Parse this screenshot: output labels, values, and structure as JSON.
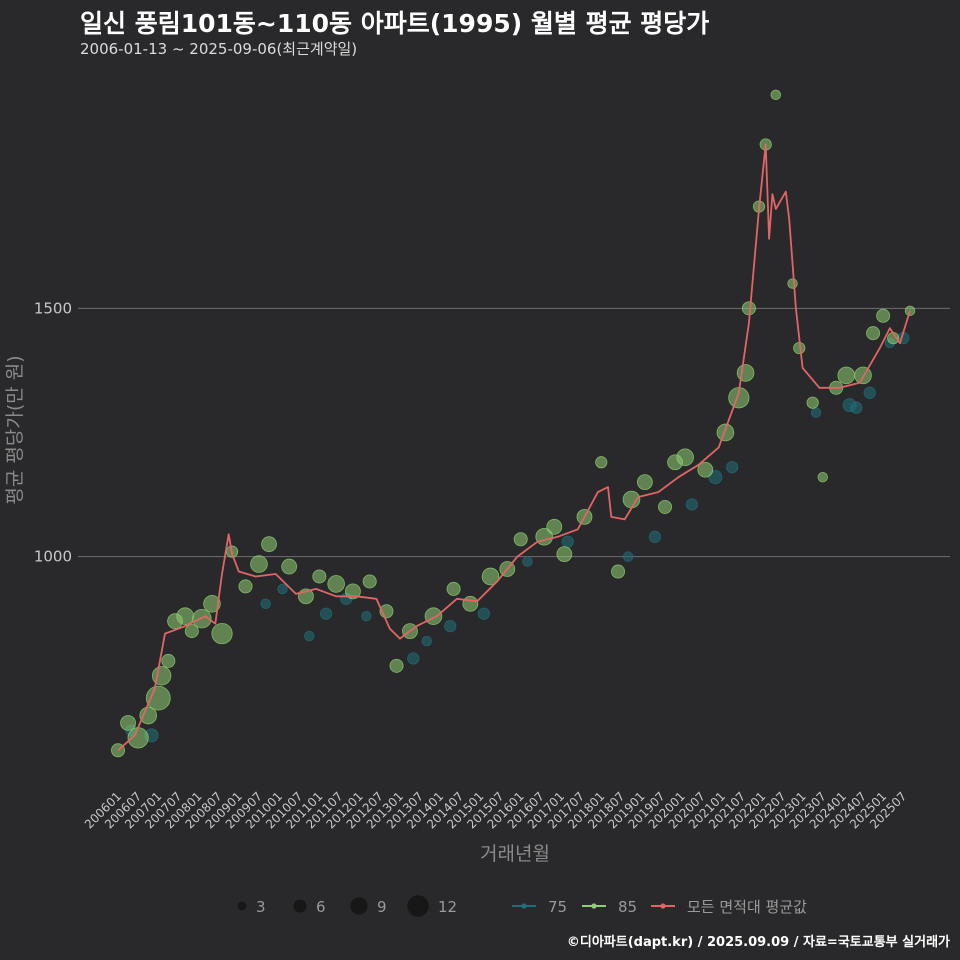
{
  "title": "일신 풍림101동~110동 아파트(1995) 월별 평균 평당가",
  "subtitle": "2006-01-13 ~ 2025-09-06(최근계약일)",
  "footer": "©디아파트(dapt.kr) / 2025.09.09 / 자료=국토교통부 실거래가",
  "colors": {
    "background": "#29282a",
    "grid": "#6e6e6e",
    "line": "#e06666",
    "area75": "#1f6f78",
    "area85": "#8fce72",
    "axis_text": "#c8c8c8",
    "axis_title": "#8a8a8a"
  },
  "chart_data": {
    "type": "line",
    "title": "일신 풍림101동~110동 아파트(1995) 월별 평균 평당가",
    "xlabel": "거래년월",
    "ylabel": "평균 평당가(만 원)",
    "ylim": [
      530,
      1980
    ],
    "yticks": [
      1000,
      1500
    ],
    "grid": true,
    "xtick_labels": [
      "200601",
      "200607",
      "200701",
      "200707",
      "200801",
      "200807",
      "200901",
      "200907",
      "201001",
      "201007",
      "201101",
      "201107",
      "201201",
      "201207",
      "201301",
      "201307",
      "201401",
      "201407",
      "201501",
      "201507",
      "201601",
      "201607",
      "201701",
      "201707",
      "201801",
      "201807",
      "201901",
      "201907",
      "202001",
      "202007",
      "202101",
      "202107",
      "202201",
      "202207",
      "202301",
      "202307",
      "202401",
      "202407",
      "202501",
      "202507"
    ],
    "month_range": [
      "2006-01",
      "2025-09"
    ],
    "line_series": {
      "name": "모든 면적대 평균값",
      "anchors": [
        [
          "2006-01",
          610
        ],
        [
          "2006-06",
          640
        ],
        [
          "2006-12",
          735
        ],
        [
          "2007-03",
          845
        ],
        [
          "2007-09",
          860
        ],
        [
          "2008-03",
          880
        ],
        [
          "2008-06",
          865
        ],
        [
          "2008-08",
          965
        ],
        [
          "2008-10",
          1045
        ],
        [
          "2008-11",
          1005
        ],
        [
          "2009-01",
          970
        ],
        [
          "2009-06",
          960
        ],
        [
          "2009-12",
          965
        ],
        [
          "2010-06",
          925
        ],
        [
          "2010-12",
          935
        ],
        [
          "2011-06",
          920
        ],
        [
          "2011-12",
          920
        ],
        [
          "2012-06",
          915
        ],
        [
          "2012-10",
          855
        ],
        [
          "2013-01",
          835
        ],
        [
          "2013-06",
          860
        ],
        [
          "2013-12",
          880
        ],
        [
          "2014-06",
          915
        ],
        [
          "2014-12",
          910
        ],
        [
          "2015-06",
          950
        ],
        [
          "2015-12",
          1000
        ],
        [
          "2016-06",
          1030
        ],
        [
          "2016-12",
          1040
        ],
        [
          "2017-06",
          1055
        ],
        [
          "2017-12",
          1130
        ],
        [
          "2018-03",
          1140
        ],
        [
          "2018-04",
          1080
        ],
        [
          "2018-08",
          1075
        ],
        [
          "2018-12",
          1120
        ],
        [
          "2019-06",
          1130
        ],
        [
          "2019-12",
          1160
        ],
        [
          "2020-06",
          1185
        ],
        [
          "2020-12",
          1220
        ],
        [
          "2021-06",
          1330
        ],
        [
          "2021-09",
          1470
        ],
        [
          "2021-12",
          1700
        ],
        [
          "2022-02",
          1830
        ],
        [
          "2022-03",
          1640
        ],
        [
          "2022-04",
          1730
        ],
        [
          "2022-05",
          1700
        ],
        [
          "2022-08",
          1735
        ],
        [
          "2022-09",
          1680
        ],
        [
          "2022-11",
          1500
        ],
        [
          "2023-01",
          1380
        ],
        [
          "2023-06",
          1340
        ],
        [
          "2023-12",
          1340
        ],
        [
          "2024-06",
          1350
        ],
        [
          "2024-12",
          1420
        ],
        [
          "2025-03",
          1460
        ],
        [
          "2025-06",
          1430
        ],
        [
          "2025-09",
          1495
        ]
      ]
    },
    "scatter_series": [
      {
        "name": "75",
        "points": [
          [
            "2006-05",
            650,
            3
          ],
          [
            "2006-11",
            640,
            4
          ],
          [
            "2009-09",
            905,
            2
          ],
          [
            "2010-02",
            935,
            2
          ],
          [
            "2010-10",
            840,
            2
          ],
          [
            "2011-03",
            885,
            3
          ],
          [
            "2011-09",
            915,
            3
          ],
          [
            "2012-03",
            880,
            2
          ],
          [
            "2013-05",
            795,
            3
          ],
          [
            "2013-09",
            830,
            2
          ],
          [
            "2014-04",
            860,
            3
          ],
          [
            "2015-02",
            885,
            3
          ],
          [
            "2016-03",
            990,
            2
          ],
          [
            "2017-03",
            1030,
            3
          ],
          [
            "2018-09",
            1000,
            2
          ],
          [
            "2019-05",
            1040,
            3
          ],
          [
            "2020-04",
            1105,
            3
          ],
          [
            "2020-11",
            1160,
            4
          ],
          [
            "2021-04",
            1180,
            3
          ],
          [
            "2023-05",
            1290,
            2
          ],
          [
            "2024-03",
            1305,
            4
          ],
          [
            "2024-05",
            1300,
            3
          ],
          [
            "2024-09",
            1330,
            3
          ],
          [
            "2025-03",
            1430,
            2
          ],
          [
            "2025-07",
            1440,
            3
          ]
        ]
      },
      {
        "name": "85",
        "points": [
          [
            "2006-01",
            610,
            4
          ],
          [
            "2006-04",
            665,
            5
          ],
          [
            "2006-07",
            635,
            8
          ],
          [
            "2006-10",
            680,
            6
          ],
          [
            "2007-01",
            715,
            10
          ],
          [
            "2007-02",
            760,
            7
          ],
          [
            "2007-04",
            790,
            4
          ],
          [
            "2007-06",
            870,
            5
          ],
          [
            "2007-09",
            880,
            6
          ],
          [
            "2007-11",
            850,
            4
          ],
          [
            "2008-02",
            875,
            7
          ],
          [
            "2008-05",
            905,
            6
          ],
          [
            "2008-08",
            845,
            8
          ],
          [
            "2008-11",
            1010,
            3
          ],
          [
            "2009-03",
            940,
            4
          ],
          [
            "2009-07",
            985,
            6
          ],
          [
            "2009-10",
            1025,
            5
          ],
          [
            "2010-04",
            980,
            5
          ],
          [
            "2010-09",
            920,
            5
          ],
          [
            "2011-01",
            960,
            4
          ],
          [
            "2011-06",
            945,
            6
          ],
          [
            "2011-11",
            930,
            5
          ],
          [
            "2012-04",
            950,
            4
          ],
          [
            "2012-09",
            890,
            4
          ],
          [
            "2012-12",
            780,
            4
          ],
          [
            "2013-04",
            850,
            5
          ],
          [
            "2013-11",
            880,
            6
          ],
          [
            "2014-05",
            935,
            4
          ],
          [
            "2014-10",
            905,
            5
          ],
          [
            "2015-04",
            960,
            6
          ],
          [
            "2015-09",
            975,
            5
          ],
          [
            "2016-01",
            1035,
            4
          ],
          [
            "2016-08",
            1040,
            6
          ],
          [
            "2016-11",
            1060,
            5
          ],
          [
            "2017-02",
            1005,
            5
          ],
          [
            "2017-08",
            1080,
            5
          ],
          [
            "2018-01",
            1190,
            3
          ],
          [
            "2018-06",
            970,
            4
          ],
          [
            "2018-10",
            1115,
            6
          ],
          [
            "2019-02",
            1150,
            5
          ],
          [
            "2019-08",
            1100,
            4
          ],
          [
            "2019-11",
            1190,
            5
          ],
          [
            "2020-02",
            1200,
            6
          ],
          [
            "2020-08",
            1175,
            5
          ],
          [
            "2021-02",
            1250,
            6
          ],
          [
            "2021-06",
            1320,
            8
          ],
          [
            "2021-08",
            1370,
            6
          ],
          [
            "2021-09",
            1500,
            4
          ],
          [
            "2021-12",
            1705,
            3
          ],
          [
            "2022-02",
            1830,
            3
          ],
          [
            "2022-05",
            1930,
            2
          ],
          [
            "2022-10",
            1550,
            2
          ],
          [
            "2022-12",
            1420,
            3
          ],
          [
            "2023-04",
            1310,
            3
          ],
          [
            "2023-07",
            1160,
            2
          ],
          [
            "2023-11",
            1340,
            4
          ],
          [
            "2024-02",
            1365,
            6
          ],
          [
            "2024-07",
            1365,
            6
          ],
          [
            "2024-10",
            1450,
            4
          ],
          [
            "2025-01",
            1485,
            4
          ],
          [
            "2025-04",
            1440,
            3
          ],
          [
            "2025-09",
            1495,
            2
          ]
        ]
      }
    ],
    "size_legend": {
      "values": [
        3,
        6,
        9,
        12
      ],
      "labels": [
        "3",
        "6",
        "9",
        "12"
      ]
    },
    "legend_labels": {
      "area75": "75",
      "area85": "85",
      "line": "모든 면적대 평균값"
    }
  }
}
